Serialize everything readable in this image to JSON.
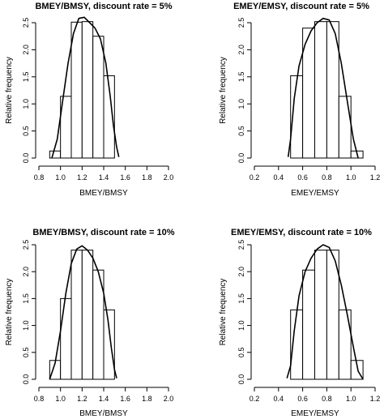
{
  "chart_data": [
    {
      "type": "bar",
      "title": "BMEY/BMSY, discount rate = 5%",
      "xlabel": "BMEY/BMSY",
      "ylabel": "Relative frequency",
      "xlim": [
        0.8,
        2.0
      ],
      "ylim": [
        0,
        2.5
      ],
      "xticks": [
        "0.8",
        "1.0",
        "1.2",
        "1.4",
        "1.6",
        "1.8",
        "2.0"
      ],
      "yticks": [
        "0.0",
        "0.5",
        "1.0",
        "1.5",
        "2.0",
        "2.5"
      ],
      "bins": [
        {
          "x0": 0.9,
          "x1": 1.0,
          "value": 0.13
        },
        {
          "x0": 1.0,
          "x1": 1.1,
          "value": 1.14
        },
        {
          "x0": 1.1,
          "x1": 1.2,
          "value": 2.51
        },
        {
          "x0": 1.2,
          "x1": 1.3,
          "value": 2.52
        },
        {
          "x0": 1.3,
          "x1": 1.4,
          "value": 2.25
        },
        {
          "x0": 1.4,
          "x1": 1.5,
          "value": 1.52
        }
      ],
      "density": {
        "x": [
          0.92,
          0.97,
          1.02,
          1.07,
          1.12,
          1.17,
          1.22,
          1.27,
          1.32,
          1.37,
          1.42,
          1.46,
          1.49,
          1.52,
          1.54
        ],
        "y": [
          0.0,
          0.35,
          1.05,
          1.75,
          2.3,
          2.58,
          2.6,
          2.5,
          2.4,
          2.2,
          1.75,
          1.15,
          0.6,
          0.2,
          0.02
        ]
      }
    },
    {
      "type": "bar",
      "title": "EMEY/EMSY, discount rate = 5%",
      "xlabel": "EMEY/EMSY",
      "ylabel": "Relative frequency",
      "xlim": [
        0.2,
        1.2
      ],
      "ylim": [
        0,
        2.5
      ],
      "xticks": [
        "0.2",
        "0.4",
        "0.6",
        "0.8",
        "1.0",
        "1.2"
      ],
      "yticks": [
        "0.0",
        "0.5",
        "1.0",
        "1.5",
        "2.0",
        "2.5"
      ],
      "bins": [
        {
          "x0": 0.5,
          "x1": 0.6,
          "value": 1.52
        },
        {
          "x0": 0.6,
          "x1": 0.7,
          "value": 2.4
        },
        {
          "x0": 0.7,
          "x1": 0.8,
          "value": 2.52
        },
        {
          "x0": 0.8,
          "x1": 0.9,
          "value": 2.52
        },
        {
          "x0": 0.9,
          "x1": 1.0,
          "value": 1.14
        },
        {
          "x0": 1.0,
          "x1": 1.1,
          "value": 0.13
        }
      ],
      "density": {
        "x": [
          0.48,
          0.5,
          0.53,
          0.57,
          0.62,
          0.67,
          0.72,
          0.77,
          0.82,
          0.87,
          0.92,
          0.97,
          1.02,
          1.06
        ],
        "y": [
          0.02,
          0.35,
          1.1,
          1.7,
          2.1,
          2.35,
          2.5,
          2.58,
          2.55,
          2.3,
          1.75,
          1.05,
          0.35,
          0.0
        ]
      }
    },
    {
      "type": "bar",
      "title": "BMEY/BMSY, discount rate = 10%",
      "xlabel": "BMEY/BMSY",
      "ylabel": "Relative frequency",
      "xlim": [
        0.8,
        2.0
      ],
      "ylim": [
        0,
        2.5
      ],
      "xticks": [
        "0.8",
        "1.0",
        "1.2",
        "1.4",
        "1.6",
        "1.8",
        "2.0"
      ],
      "yticks": [
        "0.0",
        "0.5",
        "1.0",
        "1.5",
        "2.0",
        "2.5"
      ],
      "bins": [
        {
          "x0": 0.9,
          "x1": 1.0,
          "value": 0.35
        },
        {
          "x0": 1.0,
          "x1": 1.1,
          "value": 1.5
        },
        {
          "x0": 1.1,
          "x1": 1.2,
          "value": 2.4
        },
        {
          "x0": 1.2,
          "x1": 1.3,
          "value": 2.4
        },
        {
          "x0": 1.3,
          "x1": 1.4,
          "value": 2.03
        },
        {
          "x0": 1.4,
          "x1": 1.5,
          "value": 1.29
        }
      ],
      "density": {
        "x": [
          0.9,
          0.95,
          1.0,
          1.05,
          1.1,
          1.15,
          1.2,
          1.25,
          1.3,
          1.35,
          1.4,
          1.44,
          1.47,
          1.5,
          1.52
        ],
        "y": [
          0.0,
          0.3,
          0.9,
          1.6,
          2.15,
          2.42,
          2.48,
          2.4,
          2.25,
          2.0,
          1.6,
          1.1,
          0.6,
          0.18,
          0.02
        ]
      }
    },
    {
      "type": "bar",
      "title": "EMEY/EMSY, discount rate = 10%",
      "xlabel": "EMEY/EMSY",
      "ylabel": "Relative frequency",
      "xlim": [
        0.2,
        1.2
      ],
      "ylim": [
        0,
        2.5
      ],
      "xticks": [
        "0.2",
        "0.4",
        "0.6",
        "0.8",
        "1.0",
        "1.2"
      ],
      "yticks": [
        "0.0",
        "0.5",
        "1.0",
        "1.5",
        "2.0",
        "2.5"
      ],
      "bins": [
        {
          "x0": 0.5,
          "x1": 0.6,
          "value": 1.29
        },
        {
          "x0": 0.6,
          "x1": 0.7,
          "value": 2.03
        },
        {
          "x0": 0.7,
          "x1": 0.8,
          "value": 2.4
        },
        {
          "x0": 0.8,
          "x1": 0.9,
          "value": 2.4
        },
        {
          "x0": 0.9,
          "x1": 1.0,
          "value": 1.29
        },
        {
          "x0": 1.0,
          "x1": 1.1,
          "value": 0.35
        }
      ],
      "density": {
        "x": [
          0.47,
          0.5,
          0.53,
          0.57,
          0.62,
          0.67,
          0.72,
          0.77,
          0.82,
          0.87,
          0.92,
          0.97,
          1.02,
          1.06,
          1.1
        ],
        "y": [
          0.02,
          0.25,
          0.9,
          1.55,
          2.0,
          2.25,
          2.42,
          2.5,
          2.45,
          2.2,
          1.75,
          1.2,
          0.6,
          0.15,
          0.0
        ]
      }
    }
  ]
}
